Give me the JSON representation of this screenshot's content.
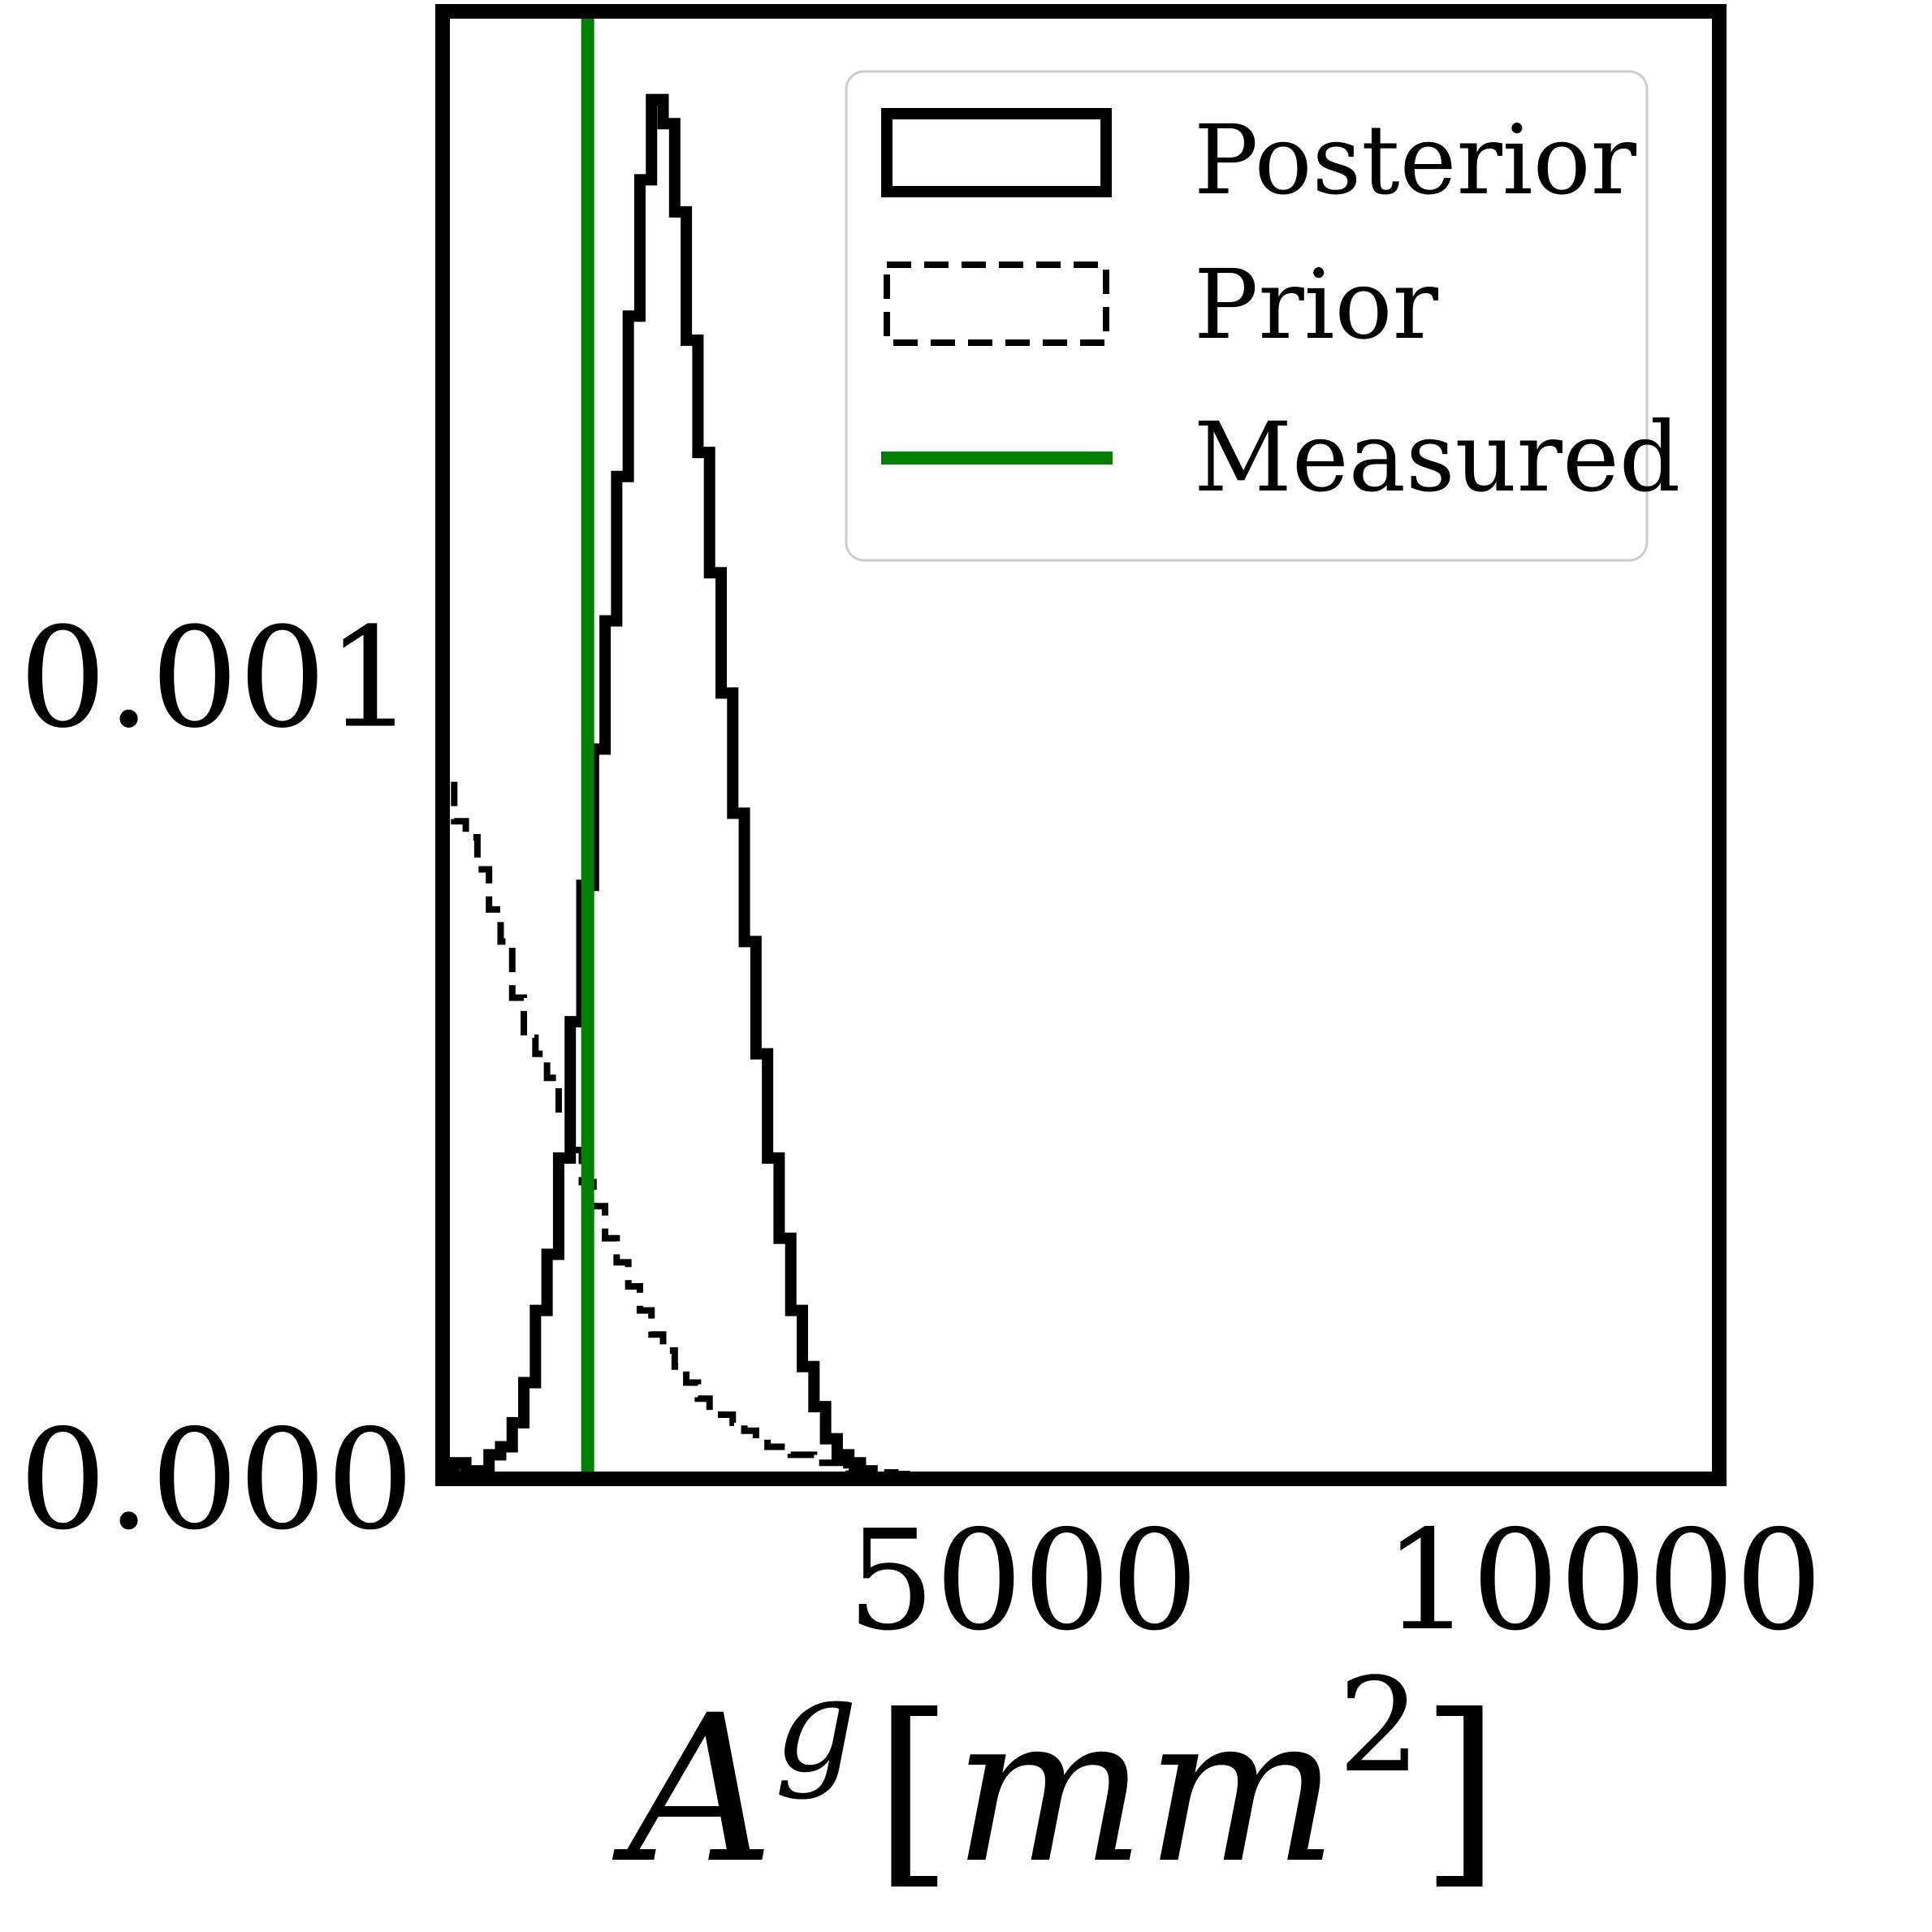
{
  "chart_data": {
    "type": "histogram",
    "xlabel": {
      "base": "A",
      "sup": "g",
      "open": "[",
      "unit": "mm",
      "unit_sup": "2",
      "close": "]"
    },
    "xlim": [
      0,
      11000
    ],
    "ylim": [
      0,
      0.00183
    ],
    "xticks": [
      {
        "value": 5000,
        "label": "5000"
      },
      {
        "value": 10000,
        "label": "10000"
      }
    ],
    "yticks": [
      {
        "value": 0,
        "label": "0.000"
      },
      {
        "value": 0.001,
        "label": "0.001"
      }
    ],
    "bin_width": 100,
    "series": [
      {
        "name": "Posterior",
        "style": "solid",
        "color": "#000000",
        "bins_start": 0,
        "values": [
          1e-05,
          2e-05,
          1e-05,
          1e-05,
          3e-05,
          4e-05,
          7e-05,
          0.00012,
          0.00021,
          0.00028,
          0.0004,
          0.00057,
          0.00074,
          0.00091,
          0.00107,
          0.00125,
          0.00145,
          0.00162,
          0.00172,
          0.00169,
          0.00158,
          0.00142,
          0.00128,
          0.00113,
          0.00098,
          0.00083,
          0.00067,
          0.00053,
          0.0004,
          0.0003,
          0.00021,
          0.00014,
          9e-05,
          5e-05,
          3e-05,
          2e-05,
          1e-05
        ]
      },
      {
        "name": "Prior",
        "style": "dashed",
        "color": "#000000",
        "bins_start": 0,
        "values": [
          0.00087,
          0.00082,
          0.0008,
          0.00076,
          0.00071,
          0.00067,
          0.0006,
          0.00055,
          0.00053,
          0.0005,
          0.00045,
          0.00041,
          0.00037,
          0.00034,
          0.0003,
          0.00027,
          0.00024,
          0.00021,
          0.00018,
          0.00016,
          0.00014,
          0.00012,
          0.0001,
          9e-05,
          8e-05,
          7e-05,
          6e-05,
          5e-05,
          4e-05,
          4e-05,
          3e-05,
          3e-05,
          2e-05,
          2e-05,
          2e-05,
          1e-05,
          1e-05,
          1e-05,
          8e-06,
          6e-06,
          5e-06,
          4e-06,
          3e-06,
          2e-06,
          2e-06,
          1e-06
        ]
      },
      {
        "name": "Measured",
        "style": "vline",
        "color": "#008000",
        "x": 1250
      }
    ],
    "legend": {
      "placement": "top-right",
      "entries": [
        "Posterior",
        "Prior",
        "Measured"
      ]
    },
    "grid": false
  }
}
